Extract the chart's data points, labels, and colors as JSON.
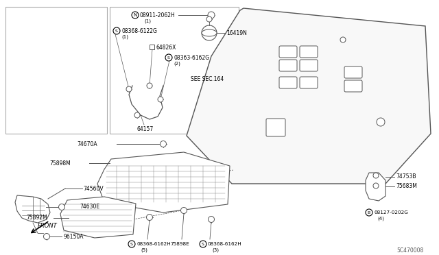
{
  "title": "",
  "bg_color": "#ffffff",
  "border_color": "#cccccc",
  "line_color": "#555555",
  "label_color": "#000000",
  "diagram_id": "5C470008",
  "labels": {
    "top_left_box": {
      "part1": "74560V",
      "part2": "74630E",
      "part3": "96150A"
    },
    "top_mid_box": {
      "part1": "08911-2062H",
      "part1_sub": "(1)",
      "part2": "08368-6122G",
      "part2_sub": "(1)",
      "part3": "64826X",
      "part4": "08363-6162G",
      "part4_sub": "(2)",
      "part5": "16419N",
      "part6": "SEE SEC.164",
      "part7": "64157"
    },
    "bottom": {
      "part1": "74670A",
      "part2": "75898M",
      "part3": "75892M",
      "part4": "08368-6162H",
      "part4_sub": "(5)",
      "part5": "75898E",
      "part6": "08368-6162H",
      "part6_sub": "(3)",
      "part7": "74753B",
      "part8": "75683M",
      "part9": "08127-0202G",
      "part9_sub": "(4)"
    },
    "front_arrow": "FRONT"
  }
}
